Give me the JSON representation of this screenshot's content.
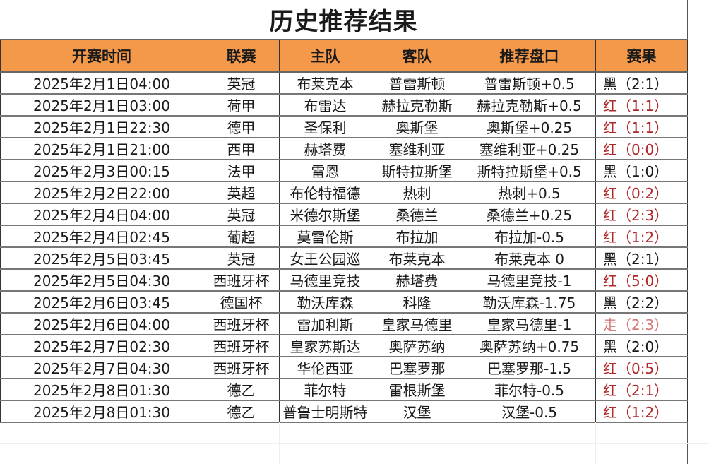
{
  "title": "历史推荐结果",
  "columns": [
    "开赛时间",
    "联赛",
    "主队",
    "客队",
    "推荐盘口",
    "赛果"
  ],
  "colors": {
    "header_bg": "#f4984a",
    "result_red": "#b0282a",
    "result_black": "#1a1a1a",
    "result_draw": "#d27a7a"
  },
  "rows": [
    {
      "time": "2025年2月1日04:00",
      "league": "英冠",
      "home": "布莱克本",
      "away": "普雷斯顿",
      "pick": "普雷斯顿+0.5",
      "result": "黑（2:1）",
      "status": "black"
    },
    {
      "time": "2025年2月1日03:00",
      "league": "荷甲",
      "home": "布雷达",
      "away": "赫拉克勒斯",
      "pick": "赫拉克勒斯+0.5",
      "result": "红（1:1）",
      "status": "red"
    },
    {
      "time": "2025年2月1日22:30",
      "league": "德甲",
      "home": "圣保利",
      "away": "奥斯堡",
      "pick": "奥斯堡+0.25",
      "result": "红（1:1）",
      "status": "red"
    },
    {
      "time": "2025年2月1日21:00",
      "league": "西甲",
      "home": "赫塔费",
      "away": "塞维利亚",
      "pick": "塞维利亚+0.25",
      "result": "红（0:0）",
      "status": "red"
    },
    {
      "time": "2025年2月3日00:15",
      "league": "法甲",
      "home": "雷恩",
      "away": "斯特拉斯堡",
      "pick": "斯特拉斯堡+0.5",
      "result": "黑（1:0）",
      "status": "black"
    },
    {
      "time": "2025年2月2日22:00",
      "league": "英超",
      "home": "布伦特福德",
      "away": "热刺",
      "pick": "热刺+0.5",
      "result": "红（0:2）",
      "status": "red"
    },
    {
      "time": "2025年2月4日04:00",
      "league": "英冠",
      "home": "米德尔斯堡",
      "away": "桑德兰",
      "pick": "桑德兰+0.25",
      "result": "红（2:3）",
      "status": "red"
    },
    {
      "time": "2025年2月4日02:45",
      "league": "葡超",
      "home": "莫雷伦斯",
      "away": "布拉加",
      "pick": "布拉加-0.5",
      "result": "红（1:2）",
      "status": "red"
    },
    {
      "time": "2025年2月5日03:45",
      "league": "英冠",
      "home": "女王公园巡",
      "away": "布莱克本",
      "pick": "布莱克本 0",
      "result": "黑（2:1）",
      "status": "black"
    },
    {
      "time": "2025年2月5日04:30",
      "league": "西班牙杯",
      "home": "马德里竞技",
      "away": "赫塔费",
      "pick": "马德里竞技-1",
      "result": "红（5:0）",
      "status": "red"
    },
    {
      "time": "2025年2月6日03:45",
      "league": "德国杯",
      "home": "勒沃库森",
      "away": "科隆",
      "pick": "勒沃库森-1.75",
      "result": "黑（2:2）",
      "status": "black"
    },
    {
      "time": "2025年2月6日04:00",
      "league": "西班牙杯",
      "home": "雷加利斯",
      "away": "皇家马德里",
      "pick": "皇家马德里-1",
      "result": "走（2:3）",
      "status": "draw"
    },
    {
      "time": "2025年2月7日02:30",
      "league": "西班牙杯",
      "home": "皇家苏斯达",
      "away": "奥萨苏纳",
      "pick": "奥萨苏纳+0.75",
      "result": "黑（2:0）",
      "status": "black"
    },
    {
      "time": "2025年2月7日04:30",
      "league": "西班牙杯",
      "home": "华伦西亚",
      "away": "巴塞罗那",
      "pick": "巴塞罗那-1.5",
      "result": "红（0:5）",
      "status": "red"
    },
    {
      "time": "2025年2月8日01:30",
      "league": "德乙",
      "home": "菲尔特",
      "away": "雷根斯堡",
      "pick": "菲尔特-0.5",
      "result": "红（2:1）",
      "status": "red"
    },
    {
      "time": "2025年2月8日01:30",
      "league": "德乙",
      "home": "普鲁士明斯特",
      "away": "汉堡",
      "pick": "汉堡-0.5",
      "result": "红（1:2）",
      "status": "red"
    }
  ]
}
